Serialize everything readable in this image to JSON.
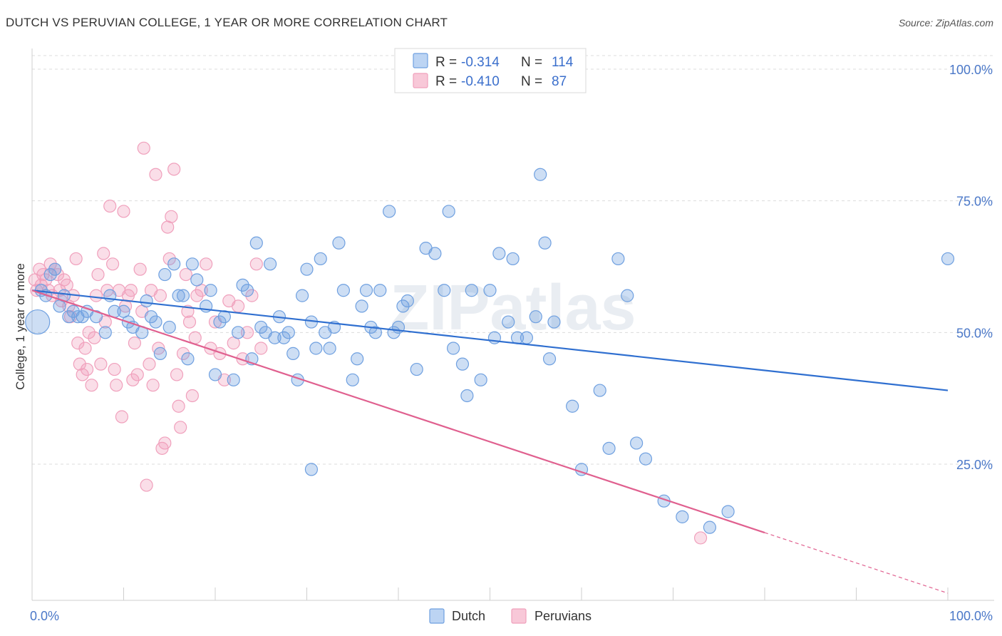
{
  "title": "DUTCH VS PERUVIAN COLLEGE, 1 YEAR OR MORE CORRELATION CHART",
  "source": "Source: ZipAtlas.com",
  "watermark": "ZIPatlas",
  "colors": {
    "dutch": "#6fa0e0",
    "dutch_line": "#2f6fd0",
    "peruvian": "#f0a0bc",
    "peruvian_line": "#e0608f",
    "axis_label": "#4b78c8"
  },
  "legend": {
    "r_label": "R =",
    "n_label": "N =",
    "dutch_r": "-0.314",
    "dutch_n": "114",
    "peruvian_r": "-0.410",
    "peruvian_n": "87"
  },
  "bottom_legend": {
    "dutch": "Dutch",
    "peruvians": "Peruvians"
  },
  "chart_data": {
    "type": "scatter",
    "title": "DUTCH VS PERUVIAN COLLEGE, 1 YEAR OR MORE CORRELATION CHART",
    "xlabel": "",
    "ylabel": "College, 1 year or more",
    "xlim": [
      0,
      100
    ],
    "ylim": [
      0,
      105
    ],
    "x_tick_labels": [
      "0.0%",
      "100.0%"
    ],
    "y_ticks": [
      25,
      50,
      75,
      100
    ],
    "y_tick_labels": [
      "25.0%",
      "50.0%",
      "75.0%",
      "100.0%"
    ],
    "series": [
      {
        "name": "Dutch",
        "r": -0.314,
        "n": 114,
        "trend": {
          "x": [
            0,
            100
          ],
          "y": [
            58,
            39
          ]
        },
        "points": [
          [
            0.6,
            52
          ],
          [
            1,
            58
          ],
          [
            1.5,
            57
          ],
          [
            2,
            61
          ],
          [
            2.5,
            62
          ],
          [
            3,
            55
          ],
          [
            3.5,
            57
          ],
          [
            4,
            53
          ],
          [
            4.5,
            54
          ],
          [
            5,
            53
          ],
          [
            5.5,
            53
          ],
          [
            6,
            54
          ],
          [
            7,
            53
          ],
          [
            8,
            50
          ],
          [
            8.5,
            57
          ],
          [
            9,
            54
          ],
          [
            10,
            54
          ],
          [
            10.5,
            52
          ],
          [
            11,
            51
          ],
          [
            12,
            50
          ],
          [
            12.5,
            56
          ],
          [
            13,
            53
          ],
          [
            13.5,
            52
          ],
          [
            14,
            46
          ],
          [
            14.5,
            61
          ],
          [
            15,
            51
          ],
          [
            15.5,
            63
          ],
          [
            16,
            57
          ],
          [
            16.5,
            57
          ],
          [
            17,
            45
          ],
          [
            17.5,
            63
          ],
          [
            18,
            60
          ],
          [
            19,
            55
          ],
          [
            19.5,
            58
          ],
          [
            20,
            42
          ],
          [
            20.5,
            52
          ],
          [
            21,
            53
          ],
          [
            22,
            41
          ],
          [
            22.5,
            50
          ],
          [
            23,
            59
          ],
          [
            23.5,
            58
          ],
          [
            24,
            45
          ],
          [
            24.5,
            67
          ],
          [
            25,
            51
          ],
          [
            25.5,
            50
          ],
          [
            26,
            63
          ],
          [
            26.5,
            49
          ],
          [
            27,
            53
          ],
          [
            27.5,
            49
          ],
          [
            28,
            50
          ],
          [
            28.5,
            46
          ],
          [
            29,
            41
          ],
          [
            29.5,
            57
          ],
          [
            30,
            62
          ],
          [
            30.5,
            52
          ],
          [
            31,
            47
          ],
          [
            31.5,
            64
          ],
          [
            32,
            50
          ],
          [
            32.5,
            47
          ],
          [
            33,
            51
          ],
          [
            33.5,
            67
          ],
          [
            34,
            58
          ],
          [
            35,
            41
          ],
          [
            35.5,
            45
          ],
          [
            36,
            55
          ],
          [
            36.5,
            58
          ],
          [
            37,
            51
          ],
          [
            37.5,
            50
          ],
          [
            38,
            58
          ],
          [
            39,
            73
          ],
          [
            39.5,
            50
          ],
          [
            40,
            51
          ],
          [
            40.5,
            55
          ],
          [
            41,
            56
          ],
          [
            42,
            43
          ],
          [
            43,
            66
          ],
          [
            44,
            65
          ],
          [
            45,
            58
          ],
          [
            45.5,
            73
          ],
          [
            46,
            47
          ],
          [
            47,
            44
          ],
          [
            47.5,
            38
          ],
          [
            48,
            58
          ],
          [
            49,
            41
          ],
          [
            50,
            58
          ],
          [
            50.5,
            49
          ],
          [
            51,
            65
          ],
          [
            52,
            52
          ],
          [
            52.5,
            64
          ],
          [
            53,
            49
          ],
          [
            54,
            49
          ],
          [
            55,
            53
          ],
          [
            55.5,
            80
          ],
          [
            56,
            67
          ],
          [
            56.5,
            45
          ],
          [
            57,
            52
          ],
          [
            59,
            36
          ],
          [
            60,
            24
          ],
          [
            62,
            39
          ],
          [
            63,
            28
          ],
          [
            64,
            64
          ],
          [
            65,
            57
          ],
          [
            66,
            29
          ],
          [
            67,
            26
          ],
          [
            69,
            18
          ],
          [
            71,
            15
          ],
          [
            74,
            13
          ],
          [
            76,
            16
          ],
          [
            100,
            64
          ],
          [
            30.5,
            24
          ]
        ]
      },
      {
        "name": "Peruvians",
        "r": -0.41,
        "n": 87,
        "trend": {
          "x": [
            0,
            80
          ],
          "y": [
            58,
            12
          ]
        },
        "trend_dashed": {
          "x": [
            80,
            100
          ],
          "y": [
            12,
            0.5
          ]
        },
        "points": [
          [
            0.3,
            60
          ],
          [
            0.5,
            58
          ],
          [
            0.8,
            62
          ],
          [
            1,
            59
          ],
          [
            1.2,
            61
          ],
          [
            1.5,
            60
          ],
          [
            1.8,
            58
          ],
          [
            2,
            63
          ],
          [
            2.2,
            57
          ],
          [
            2.5,
            62
          ],
          [
            2.8,
            61
          ],
          [
            3,
            58
          ],
          [
            3.2,
            56
          ],
          [
            3.5,
            60
          ],
          [
            3.8,
            59
          ],
          [
            4,
            55
          ],
          [
            4.2,
            53
          ],
          [
            4.5,
            57
          ],
          [
            4.8,
            64
          ],
          [
            5,
            48
          ],
          [
            5.2,
            44
          ],
          [
            5.5,
            42
          ],
          [
            5.8,
            47
          ],
          [
            6,
            43
          ],
          [
            6.2,
            50
          ],
          [
            6.5,
            40
          ],
          [
            6.8,
            49
          ],
          [
            7,
            57
          ],
          [
            7.2,
            61
          ],
          [
            7.5,
            44
          ],
          [
            7.8,
            65
          ],
          [
            8,
            52
          ],
          [
            8.2,
            58
          ],
          [
            8.5,
            74
          ],
          [
            8.8,
            63
          ],
          [
            9,
            43
          ],
          [
            9.2,
            40
          ],
          [
            9.5,
            58
          ],
          [
            9.8,
            34
          ],
          [
            10,
            73
          ],
          [
            10.2,
            55
          ],
          [
            10.5,
            57
          ],
          [
            10.8,
            58
          ],
          [
            11,
            41
          ],
          [
            11.2,
            48
          ],
          [
            11.5,
            42
          ],
          [
            11.8,
            62
          ],
          [
            12,
            54
          ],
          [
            12.2,
            85
          ],
          [
            12.5,
            21
          ],
          [
            12.8,
            44
          ],
          [
            13,
            58
          ],
          [
            13.2,
            40
          ],
          [
            13.5,
            80
          ],
          [
            13.8,
            47
          ],
          [
            14,
            57
          ],
          [
            14.2,
            28
          ],
          [
            14.5,
            29
          ],
          [
            14.8,
            70
          ],
          [
            15,
            64
          ],
          [
            15.2,
            72
          ],
          [
            15.5,
            81
          ],
          [
            15.8,
            42
          ],
          [
            16,
            36
          ],
          [
            16.2,
            32
          ],
          [
            16.5,
            46
          ],
          [
            16.8,
            61
          ],
          [
            17,
            54
          ],
          [
            17.2,
            52
          ],
          [
            17.5,
            38
          ],
          [
            17.8,
            49
          ],
          [
            18,
            57
          ],
          [
            18.5,
            58
          ],
          [
            19,
            63
          ],
          [
            19.5,
            47
          ],
          [
            20,
            52
          ],
          [
            20.5,
            46
          ],
          [
            21,
            41
          ],
          [
            21.5,
            56
          ],
          [
            22,
            48
          ],
          [
            22.5,
            55
          ],
          [
            23,
            45
          ],
          [
            23.5,
            50
          ],
          [
            24,
            57
          ],
          [
            24.5,
            63
          ],
          [
            25,
            47
          ],
          [
            73,
            11
          ]
        ]
      }
    ]
  }
}
